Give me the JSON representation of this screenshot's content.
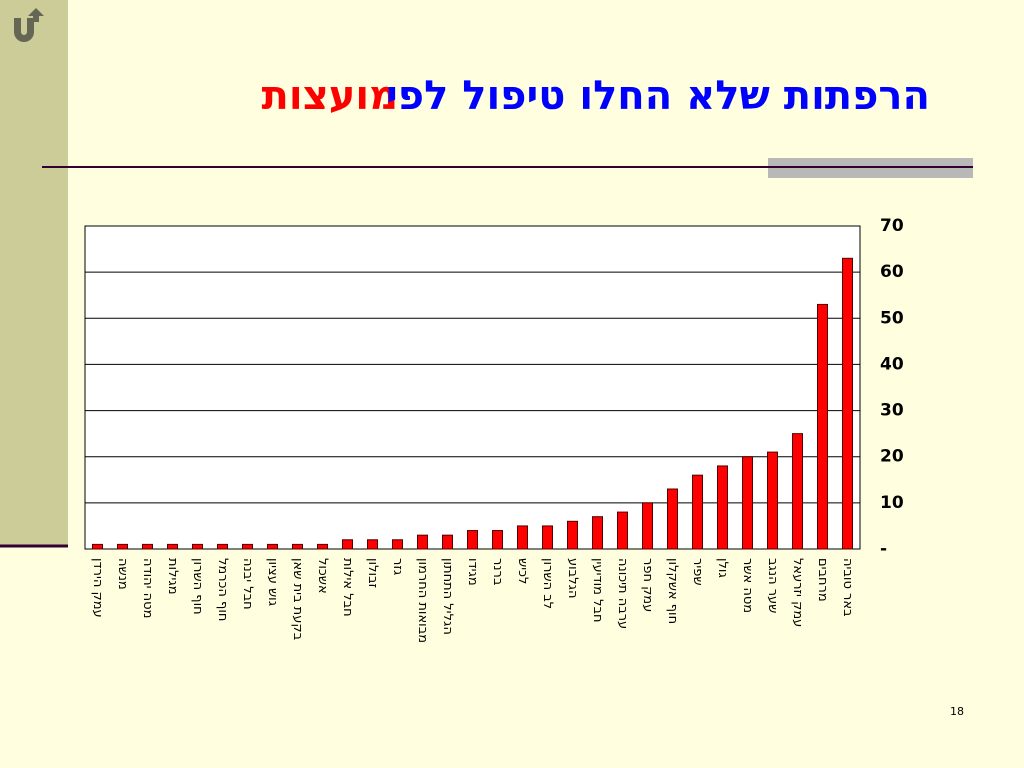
{
  "chart_data": {
    "type": "bar",
    "title": "הרפתות שלא החלו טיפול לפי",
    "title_highlight": "מועצות",
    "categories": [
      "עמק הירדן",
      "מנשה",
      "מטה יהודה",
      "מגילות",
      "חוף השרון",
      "חוף הכרמל",
      "חבל יבנה",
      "גוש עציון",
      "בקעת בית שאן",
      "אשכול",
      "חבל אילות",
      "זבולון",
      "גזר",
      "מבואות החרמון",
      "הגליל התחתון",
      "מגידו",
      "ברנר",
      "לכיש",
      "לב השרון",
      "הגלבוע",
      "חבל מודיעין",
      "ערבה תיכונה",
      "עמק חפר",
      "חוף אשקלון",
      "שפיר",
      "גולן",
      "מטה אשר",
      "שער הנגב",
      "עמק יזרעאל",
      "מרחבים",
      "באר טוביה"
    ],
    "values": [
      1,
      1,
      1,
      1,
      1,
      1,
      1,
      1,
      1,
      1,
      2,
      2,
      2,
      3,
      3,
      4,
      4,
      5,
      5,
      6,
      7,
      8,
      10,
      13,
      16,
      18,
      20,
      21,
      25,
      53,
      63
    ],
    "color": "#ff0000",
    "ylim": [
      0,
      70
    ],
    "yticks": [
      {
        "value": 0,
        "label": "-"
      },
      10,
      20,
      30,
      40,
      50,
      60,
      70
    ],
    "grid": true,
    "page_number": "18"
  }
}
